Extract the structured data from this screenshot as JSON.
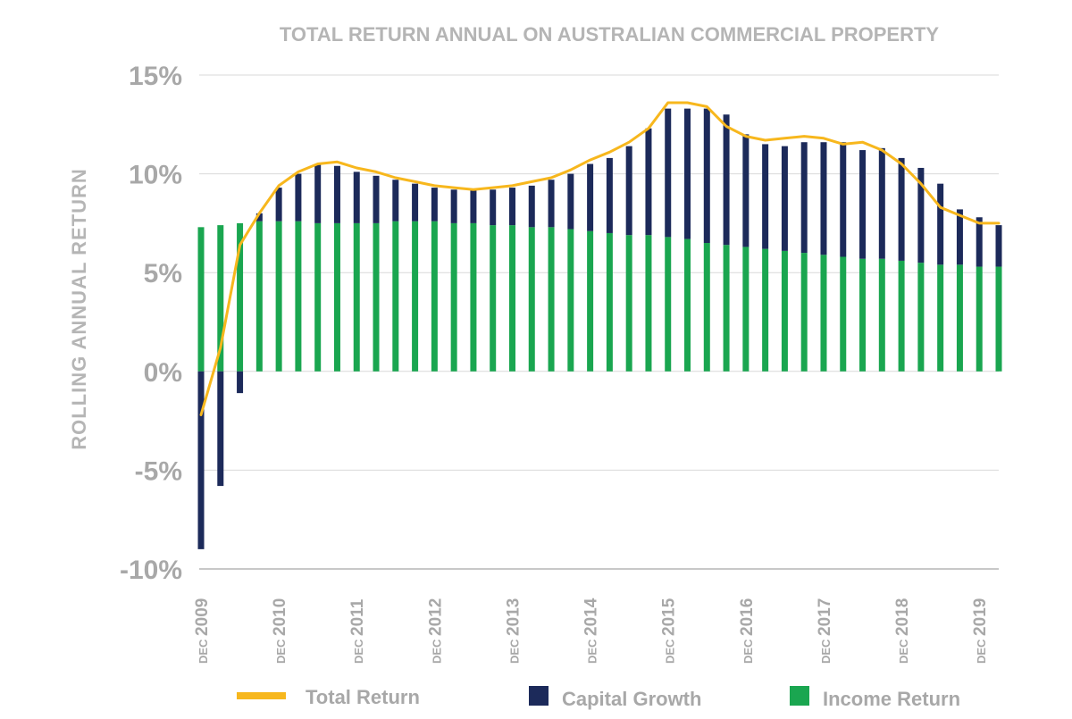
{
  "chart_data": {
    "type": "bar",
    "title": "TOTAL RETURN ANNUAL ON AUSTRALIAN COMMERCIAL PROPERTY",
    "ylabel": "ROLLING ANNUAL RETURN",
    "xlabel": "",
    "ylim": [
      -10,
      15
    ],
    "y_ticks": [
      "15%",
      "10%",
      "5%",
      "0%",
      "-5%",
      "-10%"
    ],
    "y_tick_values": [
      15,
      10,
      5,
      0,
      -5,
      -10
    ],
    "grid": true,
    "legend_position": "bottom",
    "x_tick_prefix": "DEC",
    "x_tick_labels": [
      "2009",
      "2010",
      "2011",
      "2012",
      "2013",
      "2014",
      "2015",
      "2016",
      "2017",
      "2018",
      "2019"
    ],
    "periods_per_year": 4,
    "series": [
      {
        "name": "Income Return",
        "kind": "stacked-bar",
        "color": "#1aa650",
        "values": [
          7.3,
          7.4,
          7.5,
          7.6,
          7.6,
          7.6,
          7.5,
          7.5,
          7.5,
          7.5,
          7.6,
          7.6,
          7.6,
          7.5,
          7.5,
          7.4,
          7.4,
          7.3,
          7.3,
          7.2,
          7.1,
          7.0,
          6.9,
          6.9,
          6.8,
          6.7,
          6.5,
          6.4,
          6.3,
          6.2,
          6.1,
          6.0,
          5.9,
          5.8,
          5.7,
          5.7,
          5.6,
          5.5,
          5.4,
          5.4,
          5.3,
          5.3
        ]
      },
      {
        "name": "Capital Growth",
        "kind": "stacked-bar",
        "color": "#1c2a5a",
        "values": [
          -9.0,
          -5.8,
          -1.1,
          0.4,
          1.7,
          2.4,
          3.0,
          2.9,
          2.6,
          2.4,
          2.1,
          1.9,
          1.7,
          1.7,
          1.7,
          1.8,
          1.9,
          2.1,
          2.4,
          2.8,
          3.4,
          3.8,
          4.5,
          5.4,
          6.5,
          6.6,
          6.8,
          6.6,
          5.7,
          5.3,
          5.3,
          5.6,
          5.7,
          5.8,
          5.5,
          5.6,
          5.2,
          4.8,
          4.1,
          2.8,
          2.5,
          2.1
        ]
      },
      {
        "name": "Total Return",
        "kind": "line",
        "color": "#f7b71d",
        "values": [
          -2.2,
          1.2,
          6.4,
          8.0,
          9.4,
          10.1,
          10.5,
          10.6,
          10.3,
          10.1,
          9.8,
          9.6,
          9.4,
          9.3,
          9.2,
          9.3,
          9.4,
          9.6,
          9.8,
          10.2,
          10.7,
          11.1,
          11.6,
          12.3,
          13.6,
          13.6,
          13.4,
          12.4,
          11.9,
          11.7,
          11.8,
          11.9,
          11.8,
          11.5,
          11.6,
          11.2,
          10.5,
          9.5,
          8.3,
          7.9,
          7.5,
          7.5
        ]
      }
    ]
  },
  "colors": {
    "grid": "#d9d9d9",
    "axis": "#c8c8c8",
    "label": "#a8a8a8"
  }
}
